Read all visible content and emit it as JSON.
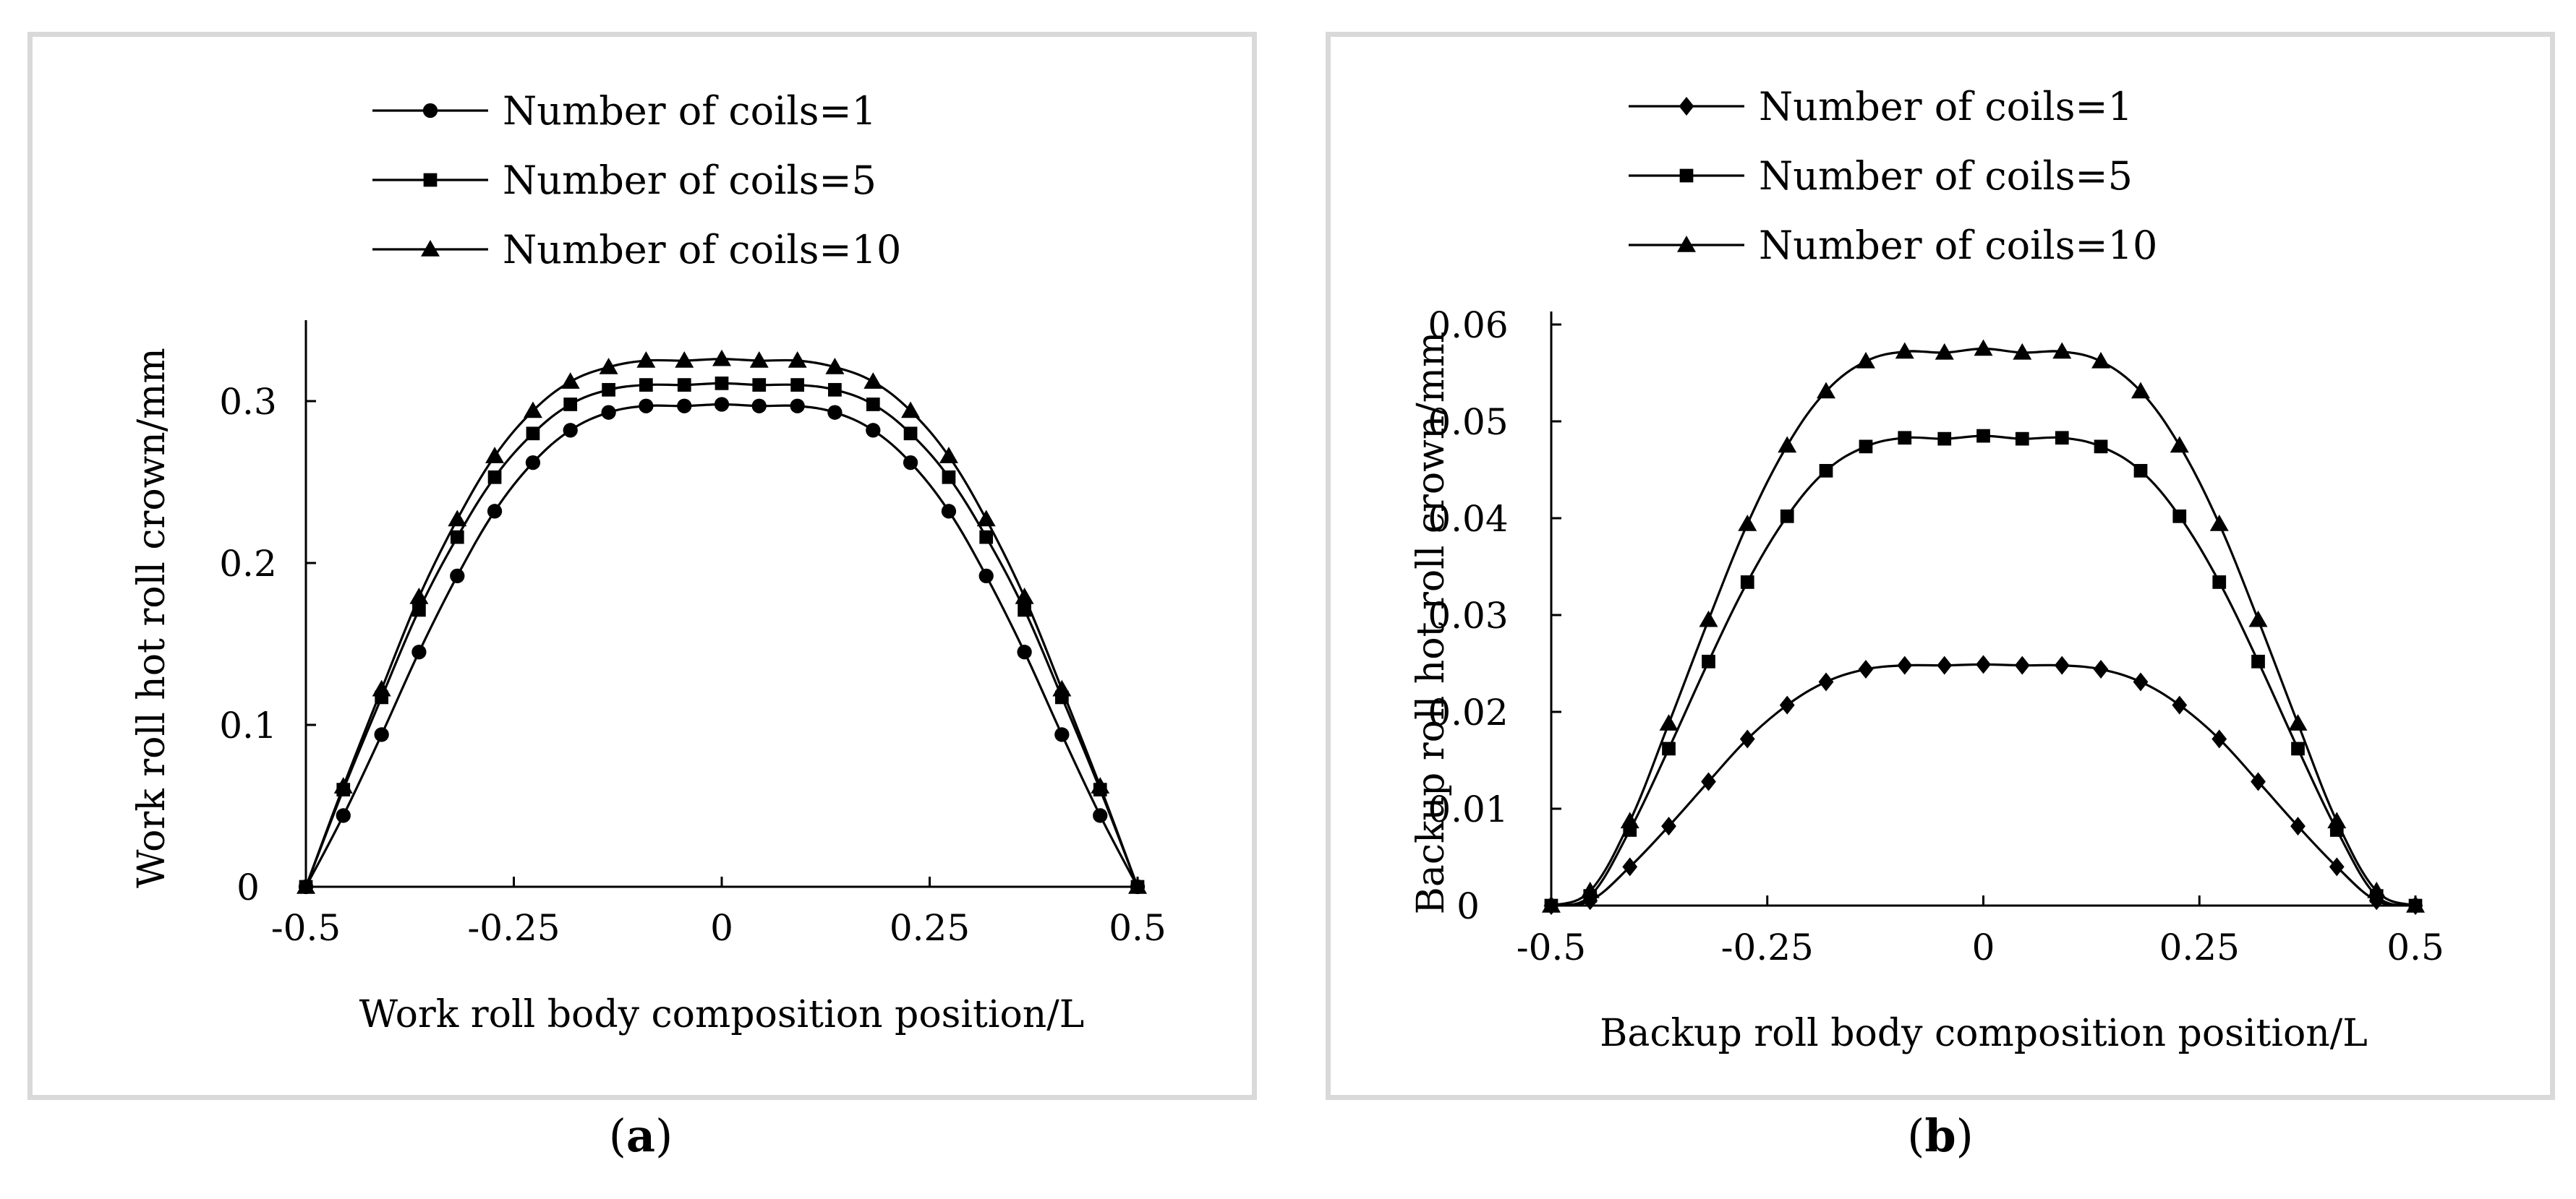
{
  "panels": [
    {
      "id": "a",
      "caption_letter": "a",
      "chart_data": {
        "type": "line",
        "xlabel": "Work roll body composition position/L",
        "ylabel": "Work roll hot roll crown/mm",
        "xlim": [
          -0.5,
          0.5
        ],
        "ylim": [
          0,
          0.35
        ],
        "xticks": [
          -0.5,
          -0.25,
          0,
          0.25,
          0.5
        ],
        "xtick_labels": [
          "-0.5",
          "-0.25",
          "0",
          "0.25",
          "0.5"
        ],
        "yticks": [
          0,
          0.1,
          0.2,
          0.3
        ],
        "ytick_labels": [
          "0",
          "0.1",
          "0.2",
          "0.3"
        ],
        "grid": false,
        "legend_position": "top-center",
        "x": [
          -0.5,
          -0.455,
          -0.409,
          -0.364,
          -0.318,
          -0.273,
          -0.227,
          -0.182,
          -0.136,
          -0.091,
          -0.045,
          0,
          0.045,
          0.091,
          0.136,
          0.182,
          0.227,
          0.273,
          0.318,
          0.364,
          0.409,
          0.455,
          0.5
        ],
        "series": [
          {
            "name": "Number of coils=1",
            "marker": "circle",
            "values": [
              0,
              0.044,
              0.094,
              0.145,
              0.192,
              0.232,
              0.262,
              0.282,
              0.293,
              0.297,
              0.297,
              0.298,
              0.297,
              0.297,
              0.293,
              0.282,
              0.262,
              0.232,
              0.192,
              0.145,
              0.094,
              0.044,
              0
            ]
          },
          {
            "name": "Number of coils=5",
            "marker": "square",
            "values": [
              0,
              0.06,
              0.117,
              0.171,
              0.216,
              0.253,
              0.28,
              0.298,
              0.307,
              0.31,
              0.31,
              0.311,
              0.31,
              0.31,
              0.307,
              0.298,
              0.28,
              0.253,
              0.216,
              0.171,
              0.117,
              0.06,
              0
            ]
          },
          {
            "name": "Number of coils=10",
            "marker": "triangle",
            "values": [
              0,
              0.062,
              0.122,
              0.179,
              0.227,
              0.266,
              0.294,
              0.312,
              0.321,
              0.325,
              0.325,
              0.326,
              0.325,
              0.325,
              0.321,
              0.312,
              0.294,
              0.266,
              0.227,
              0.179,
              0.122,
              0.062,
              0
            ]
          }
        ]
      }
    },
    {
      "id": "b",
      "caption_letter": "b",
      "chart_data": {
        "type": "line",
        "xlabel": "Backup roll body composition position/L",
        "ylabel": "Backup roll hot roll crown/mm",
        "xlim": [
          -0.5,
          0.5
        ],
        "ylim": [
          0,
          0.06
        ],
        "xticks": [
          -0.5,
          -0.25,
          0,
          0.25,
          0.5
        ],
        "xtick_labels": [
          "-0.5",
          "-0.25",
          "0",
          "0.25",
          "0.5"
        ],
        "yticks": [
          0,
          0.01,
          0.02,
          0.03,
          0.04,
          0.05,
          0.06
        ],
        "ytick_labels": [
          "0",
          "0.01",
          "0.02",
          "0.03",
          "0.04",
          "0.05",
          "0.06"
        ],
        "grid": false,
        "legend_position": "top-center",
        "x": [
          -0.5,
          -0.455,
          -0.409,
          -0.364,
          -0.318,
          -0.273,
          -0.227,
          -0.182,
          -0.136,
          -0.091,
          -0.045,
          0,
          0.045,
          0.091,
          0.136,
          0.182,
          0.227,
          0.273,
          0.318,
          0.364,
          0.409,
          0.455,
          0.5
        ],
        "series": [
          {
            "name": "Number of coils=1",
            "marker": "diamond",
            "values": [
              0,
              0.0005,
              0.004,
              0.0082,
              0.0128,
              0.0172,
              0.0207,
              0.0231,
              0.0244,
              0.0248,
              0.0248,
              0.0249,
              0.0248,
              0.0248,
              0.0244,
              0.0231,
              0.0207,
              0.0172,
              0.0128,
              0.0082,
              0.004,
              0.0005,
              0
            ]
          },
          {
            "name": "Number of coils=5",
            "marker": "square",
            "values": [
              0,
              0.001,
              0.0078,
              0.0162,
              0.0252,
              0.0334,
              0.0402,
              0.0449,
              0.0474,
              0.0483,
              0.0482,
              0.0485,
              0.0482,
              0.0483,
              0.0474,
              0.0449,
              0.0402,
              0.0334,
              0.0252,
              0.0162,
              0.0078,
              0.001,
              0
            ]
          },
          {
            "name": "Number of coils=10",
            "marker": "triangle",
            "values": [
              0,
              0.0015,
              0.0087,
              0.0188,
              0.0295,
              0.0394,
              0.0475,
              0.0531,
              0.0562,
              0.0572,
              0.0571,
              0.0575,
              0.0571,
              0.0572,
              0.0562,
              0.0531,
              0.0475,
              0.0394,
              0.0295,
              0.0188,
              0.0087,
              0.0015,
              0
            ]
          }
        ]
      }
    }
  ]
}
